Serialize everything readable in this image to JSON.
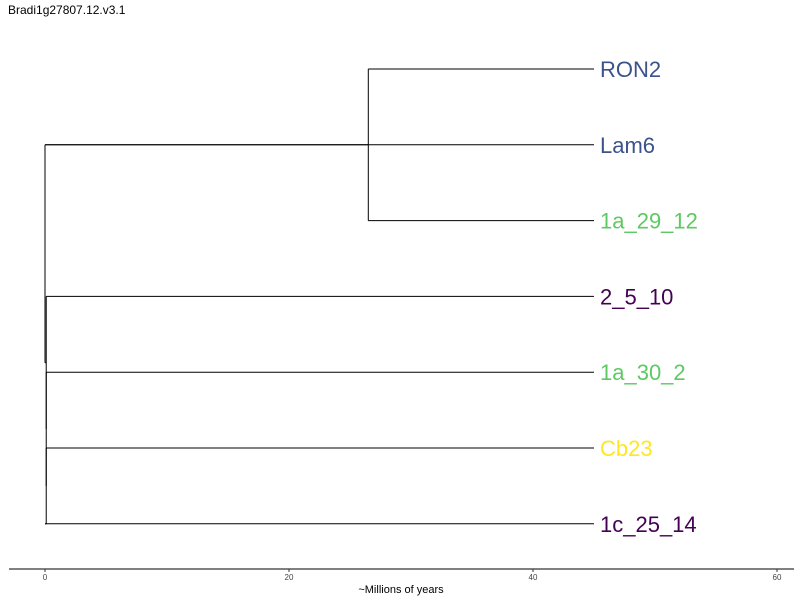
{
  "title": "Bradi1g27807.12.v3.1",
  "axis": {
    "label": "~Millions of years",
    "ticks": [
      0,
      20,
      40,
      60
    ],
    "range": [
      -3,
      61
    ]
  },
  "tree": {
    "nodes": [
      {
        "id": "root",
        "time": 0,
        "parent": null
      },
      {
        "id": "n1",
        "time": 0,
        "parent": "root"
      },
      {
        "id": "n2",
        "time": 26.5,
        "parent": "n1"
      },
      {
        "id": "n3",
        "time": 0.1,
        "parent": "root"
      },
      {
        "id": "n4",
        "time": 0.1,
        "parent": "n3"
      },
      {
        "id": "n5",
        "time": 0.1,
        "parent": "n4"
      },
      {
        "id": "n6",
        "time": 0,
        "parent": "n5"
      }
    ],
    "tips": [
      {
        "label": "RON2",
        "color": "#3b528b",
        "parent": "n2"
      },
      {
        "label": "Lam6",
        "color": "#3b528b",
        "parent": "n1"
      },
      {
        "label": "1a_29_12",
        "color": "#5ec962",
        "parent": "n2"
      },
      {
        "label": "2_5_10",
        "color": "#440154",
        "parent": "n3"
      },
      {
        "label": "1a_30_2",
        "color": "#5ec962",
        "parent": "n4"
      },
      {
        "label": "Cb23",
        "color": "#fde725",
        "parent": "n5"
      },
      {
        "label": "1c_25_14",
        "color": "#440154",
        "parent": "n6"
      }
    ],
    "tip_time": 45,
    "line_color": "#000000"
  }
}
